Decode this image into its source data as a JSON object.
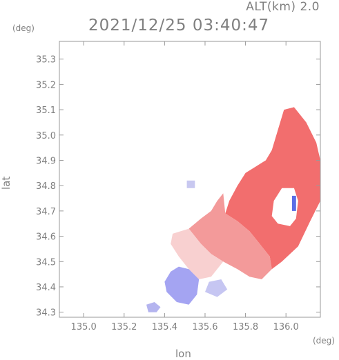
{
  "header": {
    "altitude_label": "ALT(km) 2.0",
    "timestamp": "2021/12/25 03:40:47"
  },
  "axes": {
    "xlabel": "lon",
    "ylabel": "lat",
    "x_unit": "(deg)",
    "y_unit": "(deg)"
  },
  "chart_data": {
    "type": "heatmap",
    "xlabel": "lon",
    "ylabel": "lat",
    "xlim": [
      134.88,
      136.17
    ],
    "ylim": [
      34.28,
      35.37
    ],
    "x_ticks": [
      "135.0",
      "135.2",
      "135.4",
      "135.6",
      "135.8",
      "136.0"
    ],
    "y_ticks": [
      "34.3",
      "34.4",
      "34.5",
      "34.6",
      "34.7",
      "34.8",
      "34.9",
      "35.0",
      "35.1",
      "35.2",
      "35.3"
    ],
    "grid": false,
    "colors": {
      "positive": "#f07070",
      "neutral": "#f6e6e6",
      "negative": "#8c8cf0"
    },
    "regions": [
      {
        "name": "strong-positive",
        "color": "#f26e6e",
        "polygon": [
          [
            135.99,
            35.1
          ],
          [
            136.04,
            35.11
          ],
          [
            136.1,
            35.05
          ],
          [
            136.15,
            34.97
          ],
          [
            136.17,
            34.9
          ],
          [
            136.17,
            34.74
          ],
          [
            136.12,
            34.66
          ],
          [
            136.06,
            34.56
          ],
          [
            135.98,
            34.5
          ],
          [
            135.93,
            34.47
          ],
          [
            135.92,
            34.52
          ],
          [
            135.86,
            34.58
          ],
          [
            135.82,
            34.62
          ],
          [
            135.76,
            34.66
          ],
          [
            135.7,
            34.69
          ],
          [
            135.72,
            34.74
          ],
          [
            135.76,
            34.8
          ],
          [
            135.8,
            34.85
          ],
          [
            135.84,
            34.87
          ],
          [
            135.9,
            34.9
          ],
          [
            135.93,
            34.94
          ],
          [
            135.96,
            35.02
          ]
        ]
      },
      {
        "name": "medium-positive",
        "color": "#f39a9a",
        "polygon": [
          [
            135.7,
            34.69
          ],
          [
            135.76,
            34.66
          ],
          [
            135.82,
            34.62
          ],
          [
            135.86,
            34.58
          ],
          [
            135.92,
            34.52
          ],
          [
            135.93,
            34.47
          ],
          [
            135.88,
            34.43
          ],
          [
            135.82,
            34.44
          ],
          [
            135.76,
            34.47
          ],
          [
            135.69,
            34.5
          ],
          [
            135.63,
            34.53
          ],
          [
            135.58,
            34.57
          ],
          [
            135.55,
            34.6
          ],
          [
            135.52,
            34.63
          ],
          [
            135.58,
            34.67
          ],
          [
            135.63,
            34.7
          ],
          [
            135.66,
            34.74
          ],
          [
            135.69,
            34.77
          ]
        ]
      },
      {
        "name": "light-positive",
        "color": "#f8d0d0",
        "polygon": [
          [
            135.52,
            34.63
          ],
          [
            135.55,
            34.6
          ],
          [
            135.58,
            34.57
          ],
          [
            135.63,
            34.53
          ],
          [
            135.69,
            34.5
          ],
          [
            135.63,
            34.44
          ],
          [
            135.57,
            34.43
          ],
          [
            135.52,
            34.47
          ],
          [
            135.47,
            34.52
          ],
          [
            135.43,
            34.57
          ],
          [
            135.44,
            34.61
          ]
        ]
      },
      {
        "name": "negative-core",
        "color": "#a4a4f2",
        "polygon": [
          [
            135.47,
            34.48
          ],
          [
            135.52,
            34.47
          ],
          [
            135.57,
            34.43
          ],
          [
            135.56,
            34.37
          ],
          [
            135.52,
            34.33
          ],
          [
            135.46,
            34.34
          ],
          [
            135.41,
            34.38
          ],
          [
            135.4,
            34.42
          ],
          [
            135.43,
            34.46
          ]
        ]
      },
      {
        "name": "negative-south",
        "color": "#b4b4ef",
        "polygon": [
          [
            135.31,
            34.33
          ],
          [
            135.35,
            34.34
          ],
          [
            135.38,
            34.32
          ],
          [
            135.36,
            34.3
          ],
          [
            135.32,
            34.3
          ]
        ]
      },
      {
        "name": "negative-east",
        "color": "#c6c6f2",
        "polygon": [
          [
            135.62,
            34.42
          ],
          [
            135.68,
            34.43
          ],
          [
            135.71,
            34.39
          ],
          [
            135.66,
            34.36
          ],
          [
            135.6,
            34.38
          ]
        ]
      },
      {
        "name": "hole-in-echo",
        "color": "#ffffff",
        "polygon": [
          [
            135.98,
            34.79
          ],
          [
            136.04,
            34.79
          ],
          [
            136.06,
            34.74
          ],
          [
            136.05,
            34.67
          ],
          [
            136.02,
            34.64
          ],
          [
            135.96,
            34.65
          ],
          [
            135.93,
            34.68
          ],
          [
            135.94,
            34.74
          ]
        ]
      },
      {
        "name": "negative-spot-ne",
        "color": "#5a6ee6",
        "polygon": [
          [
            136.03,
            34.76
          ],
          [
            136.05,
            34.76
          ],
          [
            136.05,
            34.7
          ],
          [
            136.03,
            34.7
          ]
        ]
      },
      {
        "name": "isolated-speck",
        "color": "#c8c8f0",
        "polygon": [
          [
            135.51,
            34.82
          ],
          [
            135.55,
            34.82
          ],
          [
            135.55,
            34.79
          ],
          [
            135.51,
            34.79
          ]
        ]
      }
    ]
  }
}
